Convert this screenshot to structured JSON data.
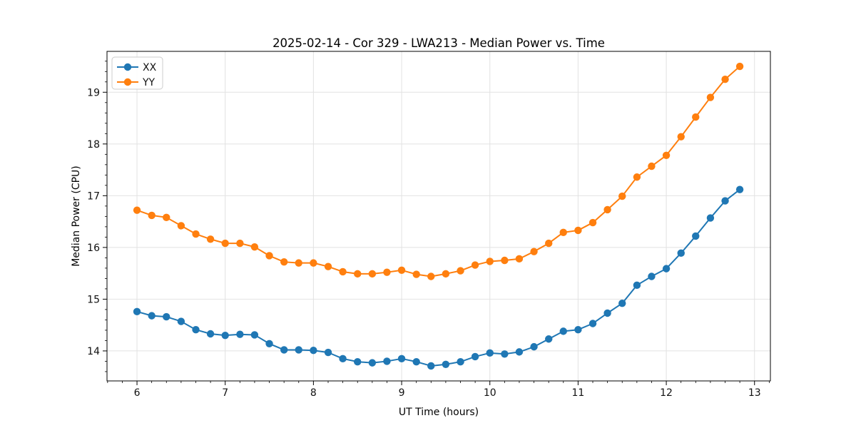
{
  "chart_data": {
    "type": "line",
    "title": "2025-02-14 - Cor 329 - LWA213 - Median Power vs. Time",
    "xlabel": "UT Time (hours)",
    "ylabel": "Median Power (CPU)",
    "xlim": [
      5.66,
      13.18
    ],
    "ylim": [
      13.42,
      19.79
    ],
    "xticks": [
      6,
      7,
      8,
      9,
      10,
      11,
      12,
      13
    ],
    "yticks": [
      14,
      15,
      16,
      17,
      18,
      19
    ],
    "grid": true,
    "legend_position": "upper-left",
    "x": [
      6.0,
      6.167,
      6.333,
      6.5,
      6.667,
      6.833,
      7.0,
      7.167,
      7.333,
      7.5,
      7.667,
      7.833,
      8.0,
      8.167,
      8.333,
      8.5,
      8.667,
      8.833,
      9.0,
      9.167,
      9.333,
      9.5,
      9.667,
      9.833,
      10.0,
      10.167,
      10.333,
      10.5,
      10.667,
      10.833,
      11.0,
      11.167,
      11.333,
      11.5,
      11.667,
      11.833,
      12.0,
      12.167,
      12.333,
      12.5,
      12.667,
      12.833
    ],
    "series": [
      {
        "name": "XX",
        "color": "#1f77b4",
        "values": [
          14.76,
          14.68,
          14.66,
          14.57,
          14.41,
          14.33,
          14.3,
          14.32,
          14.31,
          14.14,
          14.02,
          14.02,
          14.01,
          13.97,
          13.85,
          13.79,
          13.77,
          13.8,
          13.85,
          13.79,
          13.71,
          13.74,
          13.79,
          13.89,
          13.96,
          13.94,
          13.98,
          14.08,
          14.23,
          14.38,
          14.41,
          14.53,
          14.73,
          14.92,
          15.27,
          15.44,
          15.59,
          15.89,
          16.22,
          16.57,
          16.9,
          17.12
        ]
      },
      {
        "name": "YY",
        "color": "#ff7f0e",
        "values": [
          16.72,
          16.62,
          16.58,
          16.42,
          16.26,
          16.16,
          16.08,
          16.08,
          16.01,
          15.84,
          15.72,
          15.7,
          15.7,
          15.63,
          15.53,
          15.49,
          15.49,
          15.52,
          15.56,
          15.48,
          15.44,
          15.49,
          15.55,
          15.66,
          15.73,
          15.75,
          15.78,
          15.92,
          16.08,
          16.29,
          16.33,
          16.48,
          16.73,
          16.99,
          17.36,
          17.57,
          17.78,
          18.14,
          18.52,
          18.9,
          19.25,
          19.5
        ]
      }
    ],
    "colors": {
      "grid": "#e2e2e2",
      "spine": "#000000",
      "text": "#111111",
      "background": "#ffffff"
    },
    "marker": "circle",
    "marker_radius": 5.2,
    "line_width": 2
  }
}
